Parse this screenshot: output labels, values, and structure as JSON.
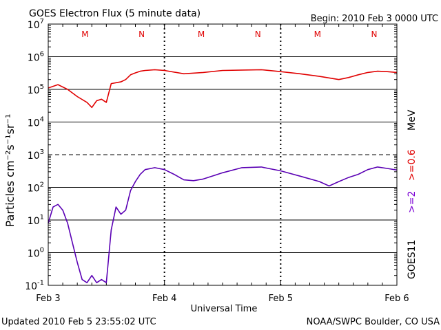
{
  "header": {
    "title": "GOES Electron Flux (5 minute data)",
    "begin": "Begin: 2010 Feb 3 0000 UTC"
  },
  "footer": {
    "updated": "Updated 2010 Feb  5 23:55:02 UTC",
    "credit": "NOAA/SWPC Boulder, CO USA"
  },
  "axes": {
    "ylabel": "Particles cm⁻²s⁻¹sr⁻¹",
    "xlabel": "Universal Time",
    "x_ticks": [
      "Feb 3",
      "Feb 4",
      "Feb 5",
      "Feb 6"
    ],
    "y_ticks": [
      {
        "base": "10",
        "exp": "7"
      },
      {
        "base": "10",
        "exp": "6"
      },
      {
        "base": "10",
        "exp": "5"
      },
      {
        "base": "10",
        "exp": "4"
      },
      {
        "base": "10",
        "exp": "3"
      },
      {
        "base": "10",
        "exp": "2"
      },
      {
        "base": "10",
        "exp": "1"
      },
      {
        "base": "10",
        "exp": "0"
      },
      {
        "base": "10",
        "exp": "-1"
      }
    ],
    "markers": [
      "M",
      "N",
      "M",
      "N",
      "M",
      "N"
    ]
  },
  "right_labels": {
    "mev": "MeV",
    "e2": ">=2",
    "e06": ">=0.6",
    "satellite": "GOES11"
  },
  "colors": {
    "series_e06": "#e00000",
    "series_e2": "#5a00b4",
    "markers": "#e00000",
    "label_e2": "#7b00d4",
    "label_e06": "#e00000"
  },
  "chart_data": {
    "type": "line",
    "xlabel": "Universal Time",
    "ylabel": "Particles cm-2 s-1 sr-1",
    "y_scale": "log",
    "ylim": [
      0.1,
      10000000
    ],
    "xlim": [
      "2010-02-03 00:00",
      "2010-02-06 00:00"
    ],
    "x_ticks": [
      "Feb 3",
      "Feb 4",
      "Feb 5",
      "Feb 6"
    ],
    "threshold_line": 1000,
    "series": [
      {
        "name": ">=0.6 MeV",
        "x_hours": [
          0,
          2,
          4,
          6,
          8,
          9,
          10,
          11,
          12,
          13,
          14,
          15,
          16,
          17,
          18,
          19,
          20,
          22,
          24,
          28,
          32,
          36,
          40,
          44,
          48,
          52,
          56,
          60,
          62,
          64,
          66,
          68,
          70,
          72
        ],
        "values": [
          110000,
          140000,
          100000,
          60000,
          40000,
          28000,
          45000,
          50000,
          40000,
          150000,
          160000,
          170000,
          200000,
          280000,
          320000,
          360000,
          380000,
          400000,
          380000,
          300000,
          330000,
          380000,
          390000,
          400000,
          350000,
          300000,
          250000,
          200000,
          230000,
          280000,
          330000,
          360000,
          350000,
          330000
        ]
      },
      {
        "name": ">=2 MeV",
        "x_hours": [
          0,
          1,
          2,
          3,
          4,
          5,
          6,
          7,
          8,
          9,
          10,
          11,
          12,
          13,
          14,
          15,
          16,
          17,
          18,
          19,
          20,
          22,
          24,
          26,
          28,
          30,
          32,
          36,
          40,
          44,
          48,
          52,
          56,
          58,
          60,
          62,
          64,
          66,
          68,
          70,
          72
        ],
        "values": [
          8,
          25,
          30,
          20,
          8,
          2,
          0.5,
          0.15,
          0.12,
          0.2,
          0.12,
          0.15,
          0.12,
          5,
          25,
          15,
          20,
          80,
          150,
          250,
          350,
          400,
          350,
          250,
          170,
          160,
          180,
          280,
          400,
          420,
          320,
          220,
          150,
          110,
          150,
          200,
          250,
          350,
          420,
          380,
          340
        ]
      }
    ]
  }
}
